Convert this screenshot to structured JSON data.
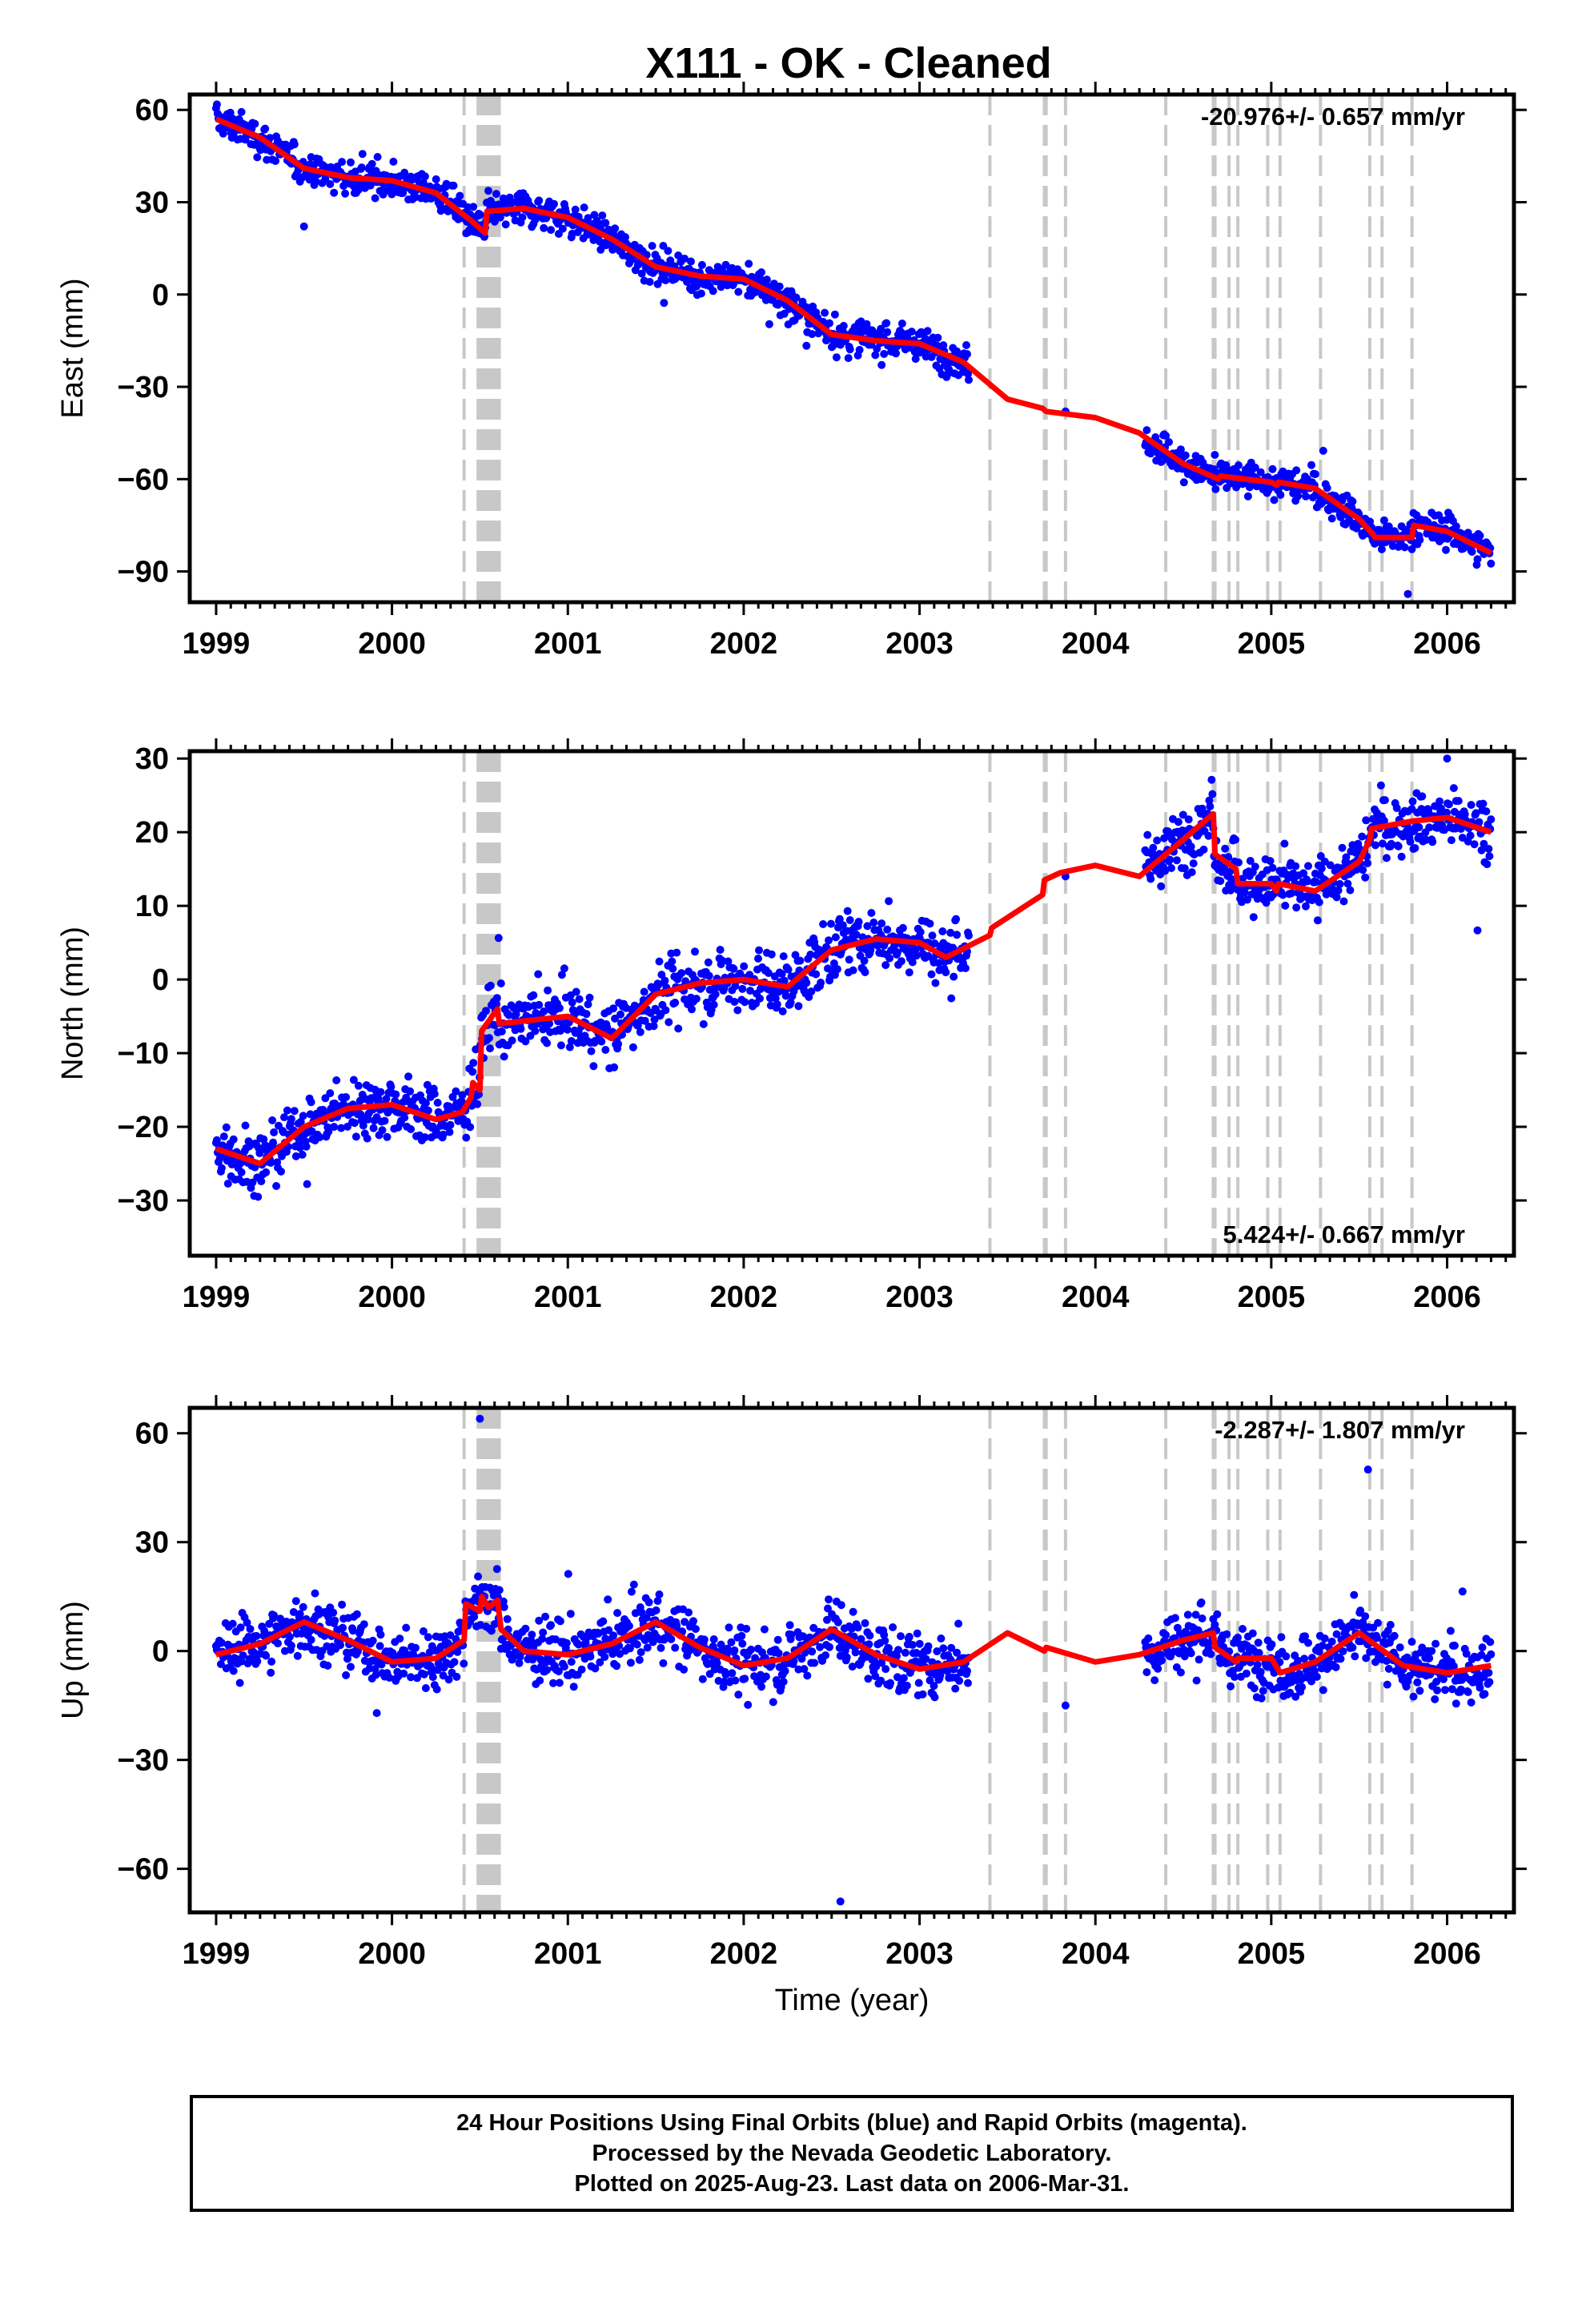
{
  "title": "X111  - OK - Cleaned",
  "xlabel": "Time (year)",
  "caption": [
    "24 Hour Positions Using Final Orbits (blue) and Rapid Orbits (magenta).",
    "Processed by the Nevada Geodetic Laboratory.",
    "Plotted on 2025-Aug-23. Last data on 2006-Mar-31."
  ],
  "colors": {
    "data": "#0000ff",
    "model": "#ff0000",
    "step_lines": "#c8c8c8",
    "frame": "#000000"
  },
  "chart_data": [
    {
      "type": "scatter",
      "component": "East",
      "ylabel": "East (mm)",
      "rate_text": "-20.976+/- 0.657 mm/yr",
      "rate_label_position": "top-right",
      "xlim": [
        1998.85,
        2006.38
      ],
      "ylim": [
        -100,
        65
      ],
      "x_ticks": [
        1999,
        2000,
        2001,
        2002,
        2003,
        2004,
        2005,
        2006
      ],
      "y_ticks": [
        60,
        30,
        0,
        -30,
        -60,
        -90
      ],
      "grid": false,
      "model_curve": {
        "x": [
          1999.0,
          1999.25,
          1999.5,
          1999.75,
          2000.0,
          2000.25,
          2000.45,
          2000.53,
          2000.54,
          2000.75,
          2001.0,
          2001.25,
          2001.5,
          2001.75,
          2002.0,
          2002.25,
          2002.5,
          2002.75,
          2003.0,
          2003.25,
          2003.5,
          2003.7,
          2003.72,
          2004.0,
          2004.25,
          2004.5,
          2004.7,
          2004.71,
          2005.0,
          2005.03,
          2005.04,
          2005.25,
          2005.5,
          2005.58,
          2005.59,
          2005.8,
          2005.81,
          2006.0,
          2006.25
        ],
        "y": [
          57,
          51,
          41,
          38,
          37,
          33,
          24,
          20,
          27,
          28,
          25,
          18,
          9,
          6,
          5,
          -2,
          -13,
          -15,
          -16,
          -22,
          -34,
          -37,
          -38,
          -40,
          -45,
          -55,
          -60,
          -59,
          -61,
          -62,
          -61,
          -63,
          -73,
          -78,
          -79,
          -79,
          -75,
          -77,
          -84
        ]
      },
      "scatter_note": "daily solutions, ~2000 points scattered about the model with ~4 mm spread; data gap 2003.3–2004.3 (single point at 2003.83, -38)",
      "step_epochs": [
        2000.41,
        2000.49,
        2000.5,
        2000.51,
        2000.52,
        2000.53,
        2000.54,
        2000.55,
        2000.56,
        2000.57,
        2000.58,
        2000.59,
        2000.6,
        2000.61,
        2003.4,
        2003.71,
        2003.72,
        2003.83,
        2004.4,
        2004.67,
        2004.68,
        2004.76,
        2004.81,
        2004.98,
        2005.05,
        2005.28,
        2005.56,
        2005.63,
        2005.8
      ]
    },
    {
      "type": "scatter",
      "component": "North",
      "ylabel": "North (mm)",
      "rate_text": "5.424+/- 0.667 mm/yr",
      "rate_label_position": "bottom-right",
      "xlim": [
        1998.85,
        2006.38
      ],
      "ylim": [
        -37.5,
        31
      ],
      "x_ticks": [
        1999,
        2000,
        2001,
        2002,
        2003,
        2004,
        2005,
        2006
      ],
      "y_ticks": [
        30,
        20,
        10,
        0,
        -10,
        -20,
        -30
      ],
      "grid": false,
      "model_curve": {
        "x": [
          1999.0,
          1999.25,
          1999.5,
          1999.75,
          2000.0,
          2000.25,
          2000.4,
          2000.45,
          2000.46,
          2000.5,
          2000.51,
          2000.6,
          2000.61,
          2000.8,
          2001.0,
          2001.25,
          2001.5,
          2001.75,
          2002.0,
          2002.25,
          2002.5,
          2002.75,
          2003.0,
          2003.15,
          2003.4,
          2003.41,
          2003.7,
          2003.71,
          2003.8,
          2004.0,
          2004.25,
          2004.5,
          2004.67,
          2004.68,
          2004.8,
          2004.81,
          2005.0,
          2005.03,
          2005.04,
          2005.25,
          2005.5,
          2005.56,
          2005.57,
          2005.8,
          2006.0,
          2006.25
        ],
        "y": [
          -23,
          -25,
          -20,
          -17.5,
          -17,
          -19,
          -18,
          -16,
          -14,
          -15,
          -7,
          -4,
          -6,
          -5.5,
          -5,
          -8,
          -2,
          -0.5,
          0,
          -1,
          4,
          5.5,
          5,
          3,
          6,
          7,
          11.5,
          13.5,
          14.5,
          15.5,
          14,
          19,
          22.5,
          17,
          15,
          13,
          13,
          12,
          13,
          12,
          16,
          19,
          20.5,
          21.5,
          22,
          20
        ]
      },
      "scatter_note": "daily solutions, ~2000 points scattered about the model with ~3 mm spread; data gap 2003.3–2004.3 (single point at 2003.83, 14)",
      "step_epochs": [
        2000.41,
        2000.49,
        2000.5,
        2000.51,
        2000.52,
        2000.53,
        2000.54,
        2000.55,
        2000.56,
        2000.57,
        2000.58,
        2000.59,
        2000.6,
        2000.61,
        2003.4,
        2003.71,
        2003.72,
        2003.83,
        2004.4,
        2004.67,
        2004.68,
        2004.76,
        2004.81,
        2004.98,
        2005.05,
        2005.28,
        2005.56,
        2005.63,
        2005.8
      ]
    },
    {
      "type": "scatter",
      "component": "Up",
      "ylabel": "Up (mm)",
      "rate_text": "-2.287+/- 1.807 mm/yr",
      "rate_label_position": "top-right",
      "xlim": [
        1998.85,
        2006.38
      ],
      "ylim": [
        -72,
        67
      ],
      "x_ticks": [
        1999,
        2000,
        2001,
        2002,
        2003,
        2004,
        2005,
        2006
      ],
      "y_ticks": [
        60,
        30,
        0,
        -30,
        -60
      ],
      "grid": false,
      "model_curve": {
        "x": [
          1999.0,
          1999.25,
          1999.5,
          1999.75,
          2000.0,
          2000.25,
          2000.41,
          2000.42,
          2000.5,
          2000.51,
          2000.55,
          2000.6,
          2000.62,
          2000.75,
          2001.0,
          2001.25,
          2001.5,
          2001.75,
          2002.0,
          2002.25,
          2002.5,
          2002.75,
          2003.0,
          2003.25,
          2003.5,
          2003.71,
          2003.72,
          2004.0,
          2004.25,
          2004.5,
          2004.67,
          2004.68,
          2004.8,
          2004.81,
          2005.0,
          2005.05,
          2005.25,
          2005.5,
          2005.75,
          2006.0,
          2006.25
        ],
        "y": [
          -1,
          2,
          8,
          3,
          -3,
          -2,
          3,
          13,
          11,
          15,
          12,
          14,
          6,
          0,
          -1,
          2,
          8,
          1,
          -4,
          -2,
          6,
          -1,
          -5,
          -3,
          5,
          0,
          1,
          -3,
          -1,
          3,
          5,
          1,
          -3,
          -2,
          -2,
          -6,
          -3,
          5,
          -4,
          -6,
          -4
        ]
      },
      "scatter_note": "daily solutions, ~2000 points scattered about the model with ~6 mm spread; outliers at 2000.5 (64) and 2002.55 (-69); data gap 2003.3–2004.3",
      "step_epochs": [
        2000.41,
        2000.49,
        2000.5,
        2000.51,
        2000.52,
        2000.53,
        2000.54,
        2000.55,
        2000.56,
        2000.57,
        2000.58,
        2000.59,
        2000.6,
        2000.61,
        2003.4,
        2003.71,
        2003.72,
        2003.83,
        2004.4,
        2004.67,
        2004.68,
        2004.76,
        2004.81,
        2004.98,
        2005.05,
        2005.28,
        2005.56,
        2005.63,
        2005.8
      ]
    }
  ]
}
